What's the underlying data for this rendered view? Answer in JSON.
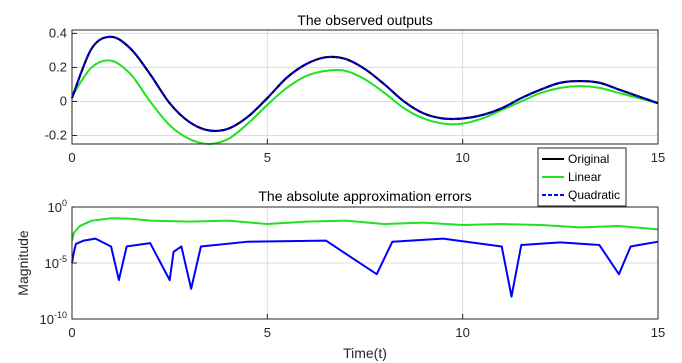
{
  "colors": {
    "original": "#000000",
    "linear": "#22e022",
    "quadratic": "#0000ff",
    "grid": "#dcdcdc",
    "axis": "#262626"
  },
  "chart_data": [
    {
      "type": "line",
      "title": "The observed outputs",
      "xlabel": "",
      "ylabel": "",
      "xlim": [
        0,
        15
      ],
      "ylim": [
        -0.25,
        0.42
      ],
      "xticks": [
        0,
        5,
        10,
        15
      ],
      "xtick_labels": [
        "0",
        "5",
        "10",
        "15"
      ],
      "yticks": [
        -0.2,
        0,
        0.2,
        0.4
      ],
      "ytick_labels": [
        "-0.2",
        "0",
        "0.2",
        "0.4"
      ],
      "grid": true,
      "legend": {
        "placement": "right",
        "entries": [
          "Original",
          "Linear",
          "Quadratic"
        ]
      },
      "series": [
        {
          "name": "Original",
          "x": [
            0,
            0.5,
            1,
            1.5,
            2,
            2.5,
            3,
            3.5,
            4,
            4.5,
            5,
            5.5,
            6,
            6.5,
            7,
            7.5,
            8,
            8.5,
            9,
            9.5,
            10,
            10.5,
            11,
            11.5,
            12,
            12.5,
            13,
            13.5,
            14,
            14.5,
            15
          ],
          "y": [
            0.02,
            0.31,
            0.38,
            0.31,
            0.16,
            -0.01,
            -0.12,
            -0.17,
            -0.16,
            -0.09,
            0.02,
            0.14,
            0.22,
            0.26,
            0.25,
            0.19,
            0.1,
            0.0,
            -0.07,
            -0.1,
            -0.1,
            -0.08,
            -0.04,
            0.02,
            0.07,
            0.11,
            0.12,
            0.11,
            0.07,
            0.03,
            -0.01
          ]
        },
        {
          "name": "Linear",
          "x": [
            0,
            0.5,
            1,
            1.5,
            2,
            2.5,
            3,
            3.5,
            4,
            4.5,
            5,
            5.5,
            6,
            6.5,
            7,
            7.5,
            8,
            8.5,
            9,
            9.5,
            10,
            10.5,
            11,
            11.5,
            12,
            12.5,
            13,
            13.5,
            14,
            14.5,
            15
          ],
          "y": [
            0.03,
            0.2,
            0.24,
            0.16,
            0.0,
            -0.14,
            -0.22,
            -0.25,
            -0.22,
            -0.13,
            -0.02,
            0.08,
            0.15,
            0.18,
            0.18,
            0.13,
            0.05,
            -0.04,
            -0.1,
            -0.13,
            -0.13,
            -0.1,
            -0.05,
            0.0,
            0.05,
            0.08,
            0.09,
            0.08,
            0.05,
            0.02,
            -0.01
          ]
        },
        {
          "name": "Quadratic",
          "x": [
            0,
            0.5,
            1,
            1.5,
            2,
            2.5,
            3,
            3.5,
            4,
            4.5,
            5,
            5.5,
            6,
            6.5,
            7,
            7.5,
            8,
            8.5,
            9,
            9.5,
            10,
            10.5,
            11,
            11.5,
            12,
            12.5,
            13,
            13.5,
            14,
            14.5,
            15
          ],
          "y": [
            0.02,
            0.31,
            0.38,
            0.31,
            0.16,
            -0.01,
            -0.12,
            -0.17,
            -0.16,
            -0.09,
            0.02,
            0.14,
            0.22,
            0.26,
            0.25,
            0.19,
            0.1,
            0.0,
            -0.07,
            -0.1,
            -0.1,
            -0.08,
            -0.04,
            0.02,
            0.07,
            0.11,
            0.12,
            0.11,
            0.07,
            0.03,
            -0.01
          ]
        }
      ]
    },
    {
      "type": "line",
      "title": "The absolute approximation errors",
      "xlabel": "Time(t)",
      "ylabel": "Magnitude",
      "xlim": [
        0,
        15
      ],
      "ylim": [
        1e-10,
        1
      ],
      "yscale": "log",
      "xticks": [
        0,
        5,
        10,
        15
      ],
      "xtick_labels": [
        "0",
        "5",
        "10",
        "15"
      ],
      "yticks": [
        1e-10,
        1e-05,
        1
      ],
      "ytick_labels": [
        {
          "base": "10",
          "exp": "-10"
        },
        {
          "base": "10",
          "exp": "-5"
        },
        {
          "base": "10",
          "exp": "0"
        }
      ],
      "grid": true,
      "series": [
        {
          "name": "Linear",
          "x": [
            0,
            0.05,
            0.2,
            0.5,
            1,
            1.5,
            2,
            3,
            4,
            5,
            6,
            7,
            8,
            9,
            10,
            11,
            12,
            13,
            14,
            15
          ],
          "y": [
            0.001,
            0.005,
            0.02,
            0.06,
            0.1,
            0.09,
            0.06,
            0.05,
            0.06,
            0.03,
            0.05,
            0.06,
            0.03,
            0.04,
            0.025,
            0.03,
            0.025,
            0.015,
            0.02,
            0.01
          ]
        },
        {
          "name": "Quadratic",
          "x": [
            0,
            0.05,
            0.1,
            0.3,
            0.6,
            1.0,
            1.2,
            1.4,
            2.0,
            2.5,
            2.6,
            2.8,
            3.05,
            3.3,
            4.5,
            6.5,
            7.8,
            8.2,
            9.5,
            11.0,
            11.25,
            11.5,
            12.5,
            13.5,
            14.0,
            14.3,
            15
          ],
          "y": [
            1e-05,
            0.0001,
            0.0005,
            0.001,
            0.0015,
            0.0003,
            3e-07,
            0.0003,
            0.0006,
            3e-07,
            0.0001,
            0.0003,
            5e-08,
            0.0003,
            0.0008,
            0.001,
            1e-06,
            0.0008,
            0.0015,
            0.0003,
            1e-08,
            0.0004,
            0.0007,
            0.0004,
            1e-06,
            0.0003,
            0.0008
          ]
        }
      ]
    }
  ]
}
